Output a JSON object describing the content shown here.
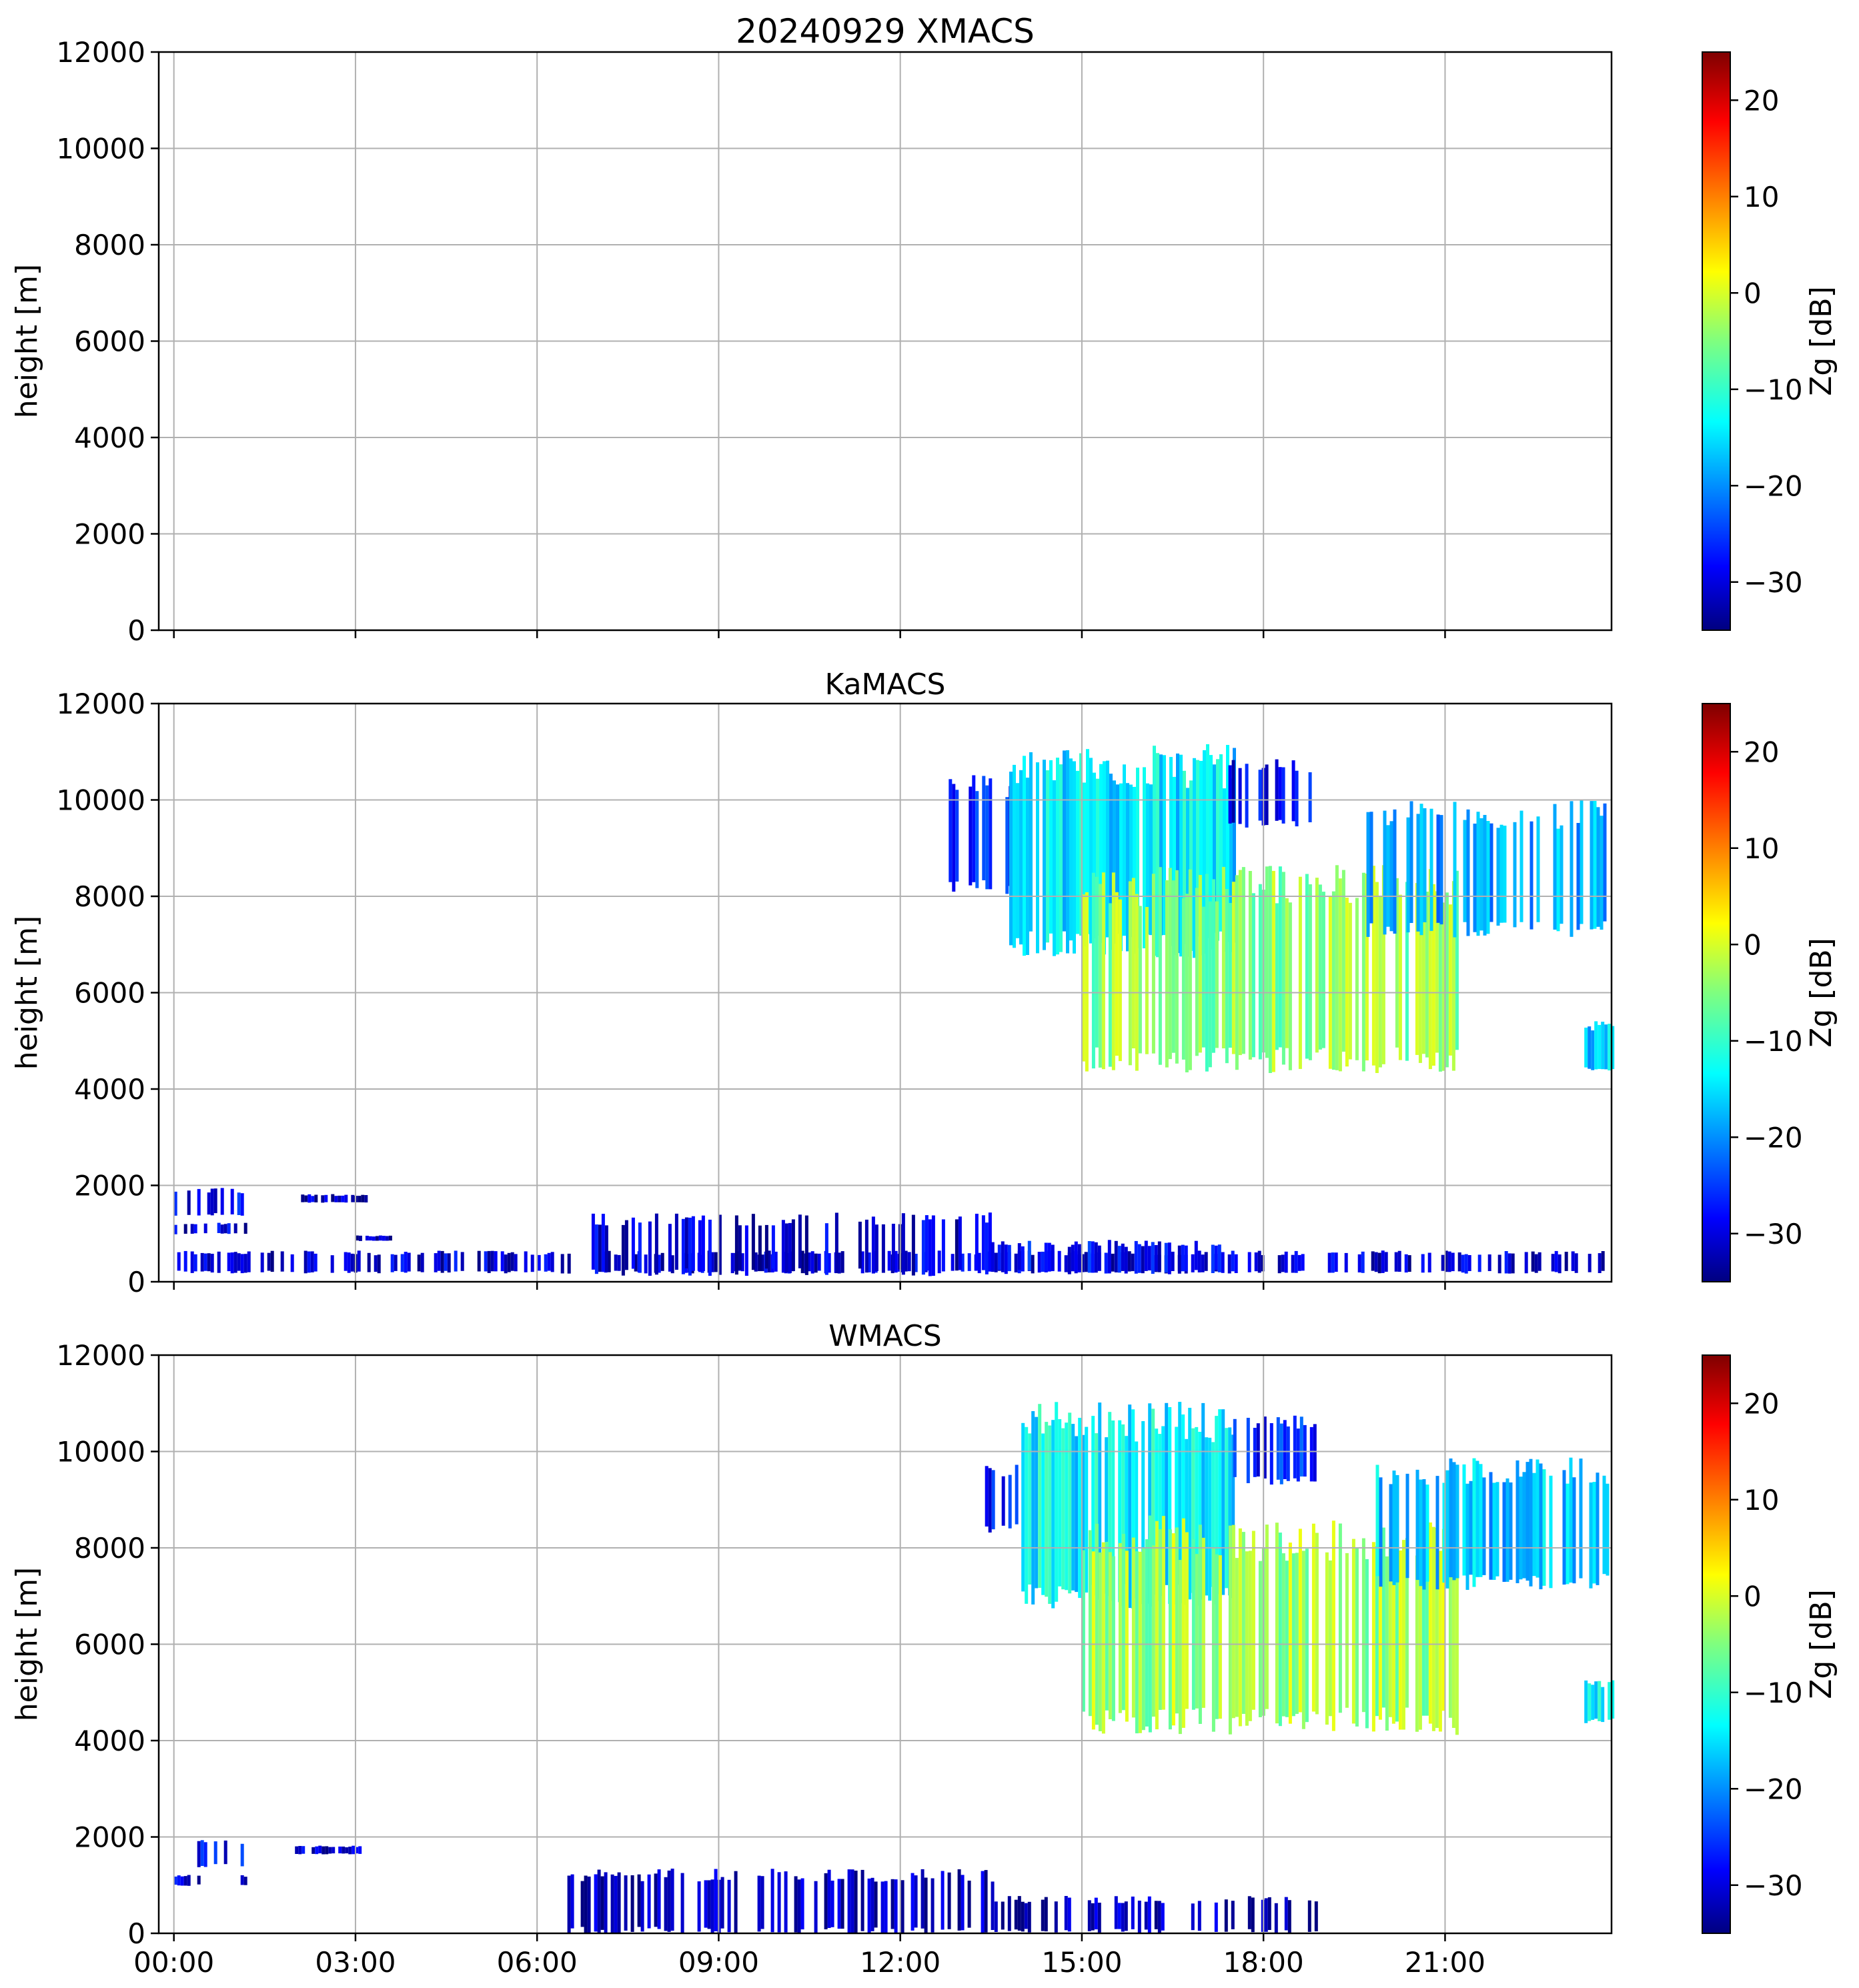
{
  "chart_data": {
    "type": "heatmap",
    "colormap": "jet",
    "xlim": [
      "23:45",
      "23:45"
    ],
    "x_ticks": [
      "00:00",
      "03:00",
      "06:00",
      "09:00",
      "12:00",
      "15:00",
      "18:00",
      "21:00"
    ],
    "ylim": [
      0,
      12000
    ],
    "y_ticks": [
      0,
      2000,
      4000,
      6000,
      8000,
      10000,
      12000
    ],
    "ylabel": "height [m]",
    "grid": true,
    "colorbar": {
      "label": "Zg [dB]",
      "range": [
        -35,
        25
      ],
      "ticks": [
        -30,
        -20,
        -10,
        0,
        10,
        20
      ]
    },
    "panels": [
      {
        "title": "20240929 XMACS",
        "echoes": []
      },
      {
        "title": "KaMACS",
        "echoes": [
          {
            "t0": 0.0,
            "t1": 24.0,
            "base": 200,
            "top": 600,
            "dbz": -30,
            "fill": 0.55
          },
          {
            "t0": 6.9,
            "t1": 13.5,
            "base": 200,
            "top": 1300,
            "dbz": -30,
            "fill": 0.45
          },
          {
            "t0": 13.5,
            "t1": 17.5,
            "base": 200,
            "top": 800,
            "dbz": -28,
            "fill": 0.5
          },
          {
            "t0": 0.0,
            "t1": 1.2,
            "base": 1400,
            "top": 1900,
            "dbz": -28,
            "fill": 0.5
          },
          {
            "t0": 0.0,
            "t1": 1.2,
            "base": 1000,
            "top": 1200,
            "dbz": -30,
            "fill": 0.5
          },
          {
            "t0": 2.1,
            "t1": 3.2,
            "base": 1650,
            "top": 1800,
            "dbz": -31,
            "fill": 0.8
          },
          {
            "t0": 3.0,
            "t1": 3.6,
            "base": 850,
            "top": 950,
            "dbz": -32,
            "fill": 0.8
          },
          {
            "t0": 12.8,
            "t1": 13.8,
            "base": 8200,
            "top": 10300,
            "dbz": -26,
            "fill": 0.55
          },
          {
            "t0": 13.8,
            "t1": 17.5,
            "base": 7000,
            "top": 10700,
            "dbz": -14,
            "fill": 0.9
          },
          {
            "t0": 15.0,
            "t1": 21.2,
            "base": 4600,
            "top": 8200,
            "dbz": -4,
            "fill": 0.82
          },
          {
            "t0": 17.2,
            "t1": 18.9,
            "base": 9500,
            "top": 10700,
            "dbz": -28,
            "fill": 0.55
          },
          {
            "t0": 19.7,
            "t1": 24.0,
            "base": 7300,
            "top": 9700,
            "dbz": -18,
            "fill": 0.62
          },
          {
            "t0": 23.3,
            "t1": 24.0,
            "base": 4400,
            "top": 5300,
            "dbz": -15,
            "fill": 0.9
          }
        ]
      },
      {
        "title": "WMACS",
        "echoes": [
          {
            "t0": 6.5,
            "t1": 13.5,
            "base": 50,
            "top": 1200,
            "dbz": -32,
            "fill": 0.5
          },
          {
            "t0": 13.5,
            "t1": 19.0,
            "base": 50,
            "top": 700,
            "dbz": -32,
            "fill": 0.45
          },
          {
            "t0": 0.0,
            "t1": 1.2,
            "base": 1400,
            "top": 1900,
            "dbz": -28,
            "fill": 0.5
          },
          {
            "t0": 0.0,
            "t1": 1.2,
            "base": 1000,
            "top": 1200,
            "dbz": -30,
            "fill": 0.5
          },
          {
            "t0": 2.0,
            "t1": 3.1,
            "base": 1650,
            "top": 1800,
            "dbz": -31,
            "fill": 0.8
          },
          {
            "t0": 13.4,
            "t1": 13.9,
            "base": 8400,
            "top": 9600,
            "dbz": -26,
            "fill": 0.55
          },
          {
            "t0": 14.0,
            "t1": 17.5,
            "base": 7000,
            "top": 10600,
            "dbz": -13,
            "fill": 0.9
          },
          {
            "t0": 15.0,
            "t1": 21.2,
            "base": 4400,
            "top": 8200,
            "dbz": -3,
            "fill": 0.82
          },
          {
            "t0": 17.5,
            "t1": 18.9,
            "base": 9400,
            "top": 10600,
            "dbz": -26,
            "fill": 0.55
          },
          {
            "t0": 19.8,
            "t1": 24.0,
            "base": 7300,
            "top": 9600,
            "dbz": -16,
            "fill": 0.62
          },
          {
            "t0": 23.3,
            "t1": 24.0,
            "base": 4400,
            "top": 5200,
            "dbz": -14,
            "fill": 0.9
          }
        ]
      }
    ]
  }
}
